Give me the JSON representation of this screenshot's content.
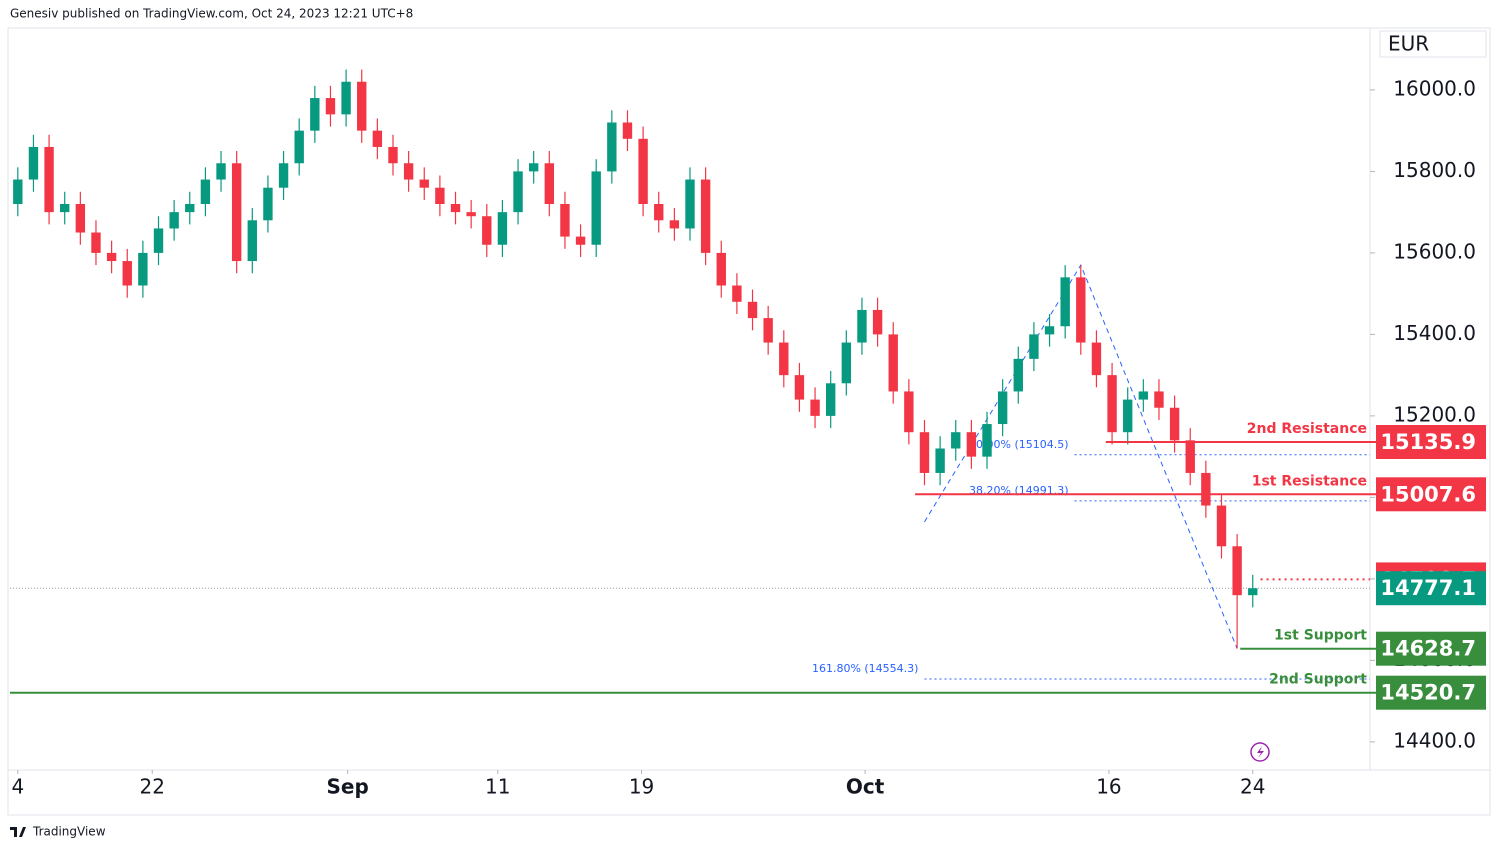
{
  "header": "Genesiv published on TradingView.com, Oct 24, 2023 12:21 UTC+8",
  "footer": "TradingView",
  "chart_data": {
    "type": "candlestick",
    "currency": "EUR",
    "up_color": "#089981",
    "down_color": "#f23645",
    "xlim": [
      -0.5,
      86.5
    ],
    "ylim": [
      14331,
      16147
    ],
    "xticks": [
      {
        "value": 0,
        "label": "4"
      },
      {
        "value": 8.6,
        "label": "22"
      },
      {
        "value": 21.1,
        "label": "Sep"
      },
      {
        "value": 30.7,
        "label": "11"
      },
      {
        "value": 39.9,
        "label": "19"
      },
      {
        "value": 54.2,
        "label": "Oct"
      },
      {
        "value": 69.8,
        "label": "16"
      },
      {
        "value": 79,
        "label": "24"
      }
    ],
    "yticks": [
      {
        "value": 14400,
        "label": "14400.0"
      },
      {
        "value": 14600,
        "label": "14600.0"
      },
      {
        "value": 14800,
        "label": "14800.0"
      },
      {
        "value": 15000,
        "label": "15000.0"
      },
      {
        "value": 15200,
        "label": "15200.0"
      },
      {
        "value": 15400,
        "label": "15400.0"
      },
      {
        "value": 15600,
        "label": "15600.0"
      },
      {
        "value": 15800,
        "label": "15800.0"
      },
      {
        "value": 16000,
        "label": "16000.0"
      }
    ],
    "open": [
      15720,
      15780,
      15860,
      15700,
      15720,
      15650,
      15600,
      15580,
      15520,
      15600,
      15660,
      15700,
      15720,
      15780,
      15820,
      15580,
      15680,
      15760,
      15820,
      15900,
      15980,
      15940,
      16020,
      15900,
      15860,
      15820,
      15780,
      15760,
      15720,
      15700,
      15690,
      15620,
      15700,
      15800,
      15820,
      15720,
      15640,
      15620,
      15800,
      15920,
      15880,
      15720,
      15680,
      15660,
      15780,
      15600,
      15520,
      15480,
      15440,
      15380,
      15300,
      15240,
      15200,
      15280,
      15380,
      15460,
      15400,
      15260,
      15160,
      15060,
      15120,
      15160,
      15100,
      15180,
      15260,
      15340,
      15400,
      15420,
      15540,
      15380,
      15300,
      15160,
      15240,
      15260,
      15220,
      15140,
      15060,
      14980,
      14880,
      14760
    ],
    "high": [
      15810,
      15890,
      15890,
      15750,
      15750,
      15680,
      15630,
      15610,
      15630,
      15690,
      15730,
      15750,
      15810,
      15850,
      15850,
      15710,
      15790,
      15850,
      15930,
      16010,
      16010,
      16050,
      16050,
      15930,
      15890,
      15850,
      15810,
      15790,
      15750,
      15730,
      15720,
      15730,
      15830,
      15850,
      15850,
      15750,
      15670,
      15830,
      15950,
      15950,
      15910,
      15750,
      15710,
      15810,
      15810,
      15630,
      15550,
      15510,
      15470,
      15410,
      15330,
      15270,
      15310,
      15410,
      15490,
      15490,
      15430,
      15290,
      15190,
      15150,
      15190,
      15190,
      15210,
      15290,
      15370,
      15430,
      15450,
      15570,
      15570,
      15410,
      15330,
      15270,
      15290,
      15290,
      15250,
      15170,
      15090,
      15010,
      14910,
      14810
    ],
    "low": [
      15690,
      15750,
      15670,
      15670,
      15620,
      15570,
      15550,
      15490,
      15490,
      15570,
      15630,
      15670,
      15690,
      15750,
      15550,
      15550,
      15650,
      15730,
      15790,
      15870,
      15910,
      15910,
      15870,
      15830,
      15790,
      15750,
      15730,
      15690,
      15670,
      15660,
      15590,
      15590,
      15670,
      15770,
      15690,
      15610,
      15590,
      15590,
      15770,
      15850,
      15690,
      15650,
      15630,
      15630,
      15570,
      15490,
      15450,
      15410,
      15350,
      15270,
      15210,
      15170,
      15170,
      15250,
      15350,
      15370,
      15230,
      15130,
      15030,
      15030,
      15090,
      15070,
      15070,
      15150,
      15230,
      15310,
      15370,
      15390,
      15350,
      15270,
      15130,
      15130,
      15210,
      15190,
      15110,
      15030,
      14950,
      14850,
      14629,
      14730
    ],
    "close": [
      15780,
      15860,
      15700,
      15720,
      15650,
      15600,
      15580,
      15520,
      15600,
      15660,
      15700,
      15720,
      15780,
      15820,
      15580,
      15680,
      15760,
      15820,
      15900,
      15980,
      15940,
      16020,
      15900,
      15860,
      15820,
      15780,
      15760,
      15720,
      15700,
      15690,
      15620,
      15700,
      15800,
      15820,
      15720,
      15640,
      15620,
      15800,
      15920,
      15880,
      15720,
      15680,
      15660,
      15780,
      15600,
      15520,
      15480,
      15440,
      15380,
      15300,
      15240,
      15200,
      15280,
      15380,
      15460,
      15400,
      15260,
      15160,
      15060,
      15120,
      15160,
      15100,
      15180,
      15260,
      15340,
      15400,
      15420,
      15540,
      15380,
      15300,
      15160,
      15240,
      15260,
      15220,
      15140,
      15060,
      14980,
      14880,
      14760,
      14777.1
    ],
    "levels": [
      {
        "name": "2nd Resistance",
        "value": 15135.9,
        "color": "#f23645",
        "from": 69.6
      },
      {
        "name": "1st Resistance",
        "value": 15007.6,
        "color": "#f23645",
        "from": 57.4
      },
      {
        "name": "1st Support",
        "value": 14628.7,
        "color": "#388e3c",
        "from": 78.2
      },
      {
        "name": "2nd Support",
        "value": 14520.7,
        "color": "#388e3c",
        "from": -0.5
      }
    ],
    "fib_levels": [
      {
        "label": "50.00% (15104.5)",
        "value": 15104.5,
        "from": 67.6
      },
      {
        "label": "38.20% (14991.3)",
        "value": 14991.3,
        "from": 67.6
      },
      {
        "label": "161.80% (14554.3)",
        "value": 14554.3,
        "from": 58
      }
    ],
    "fib_path": {
      "x": [
        58,
        68,
        78
      ],
      "y": [
        14940,
        15570,
        14629
      ]
    },
    "ask_price": 14798.7,
    "ask_color": "#f23645",
    "last_price": 14777.1,
    "last_color": "#089981"
  }
}
